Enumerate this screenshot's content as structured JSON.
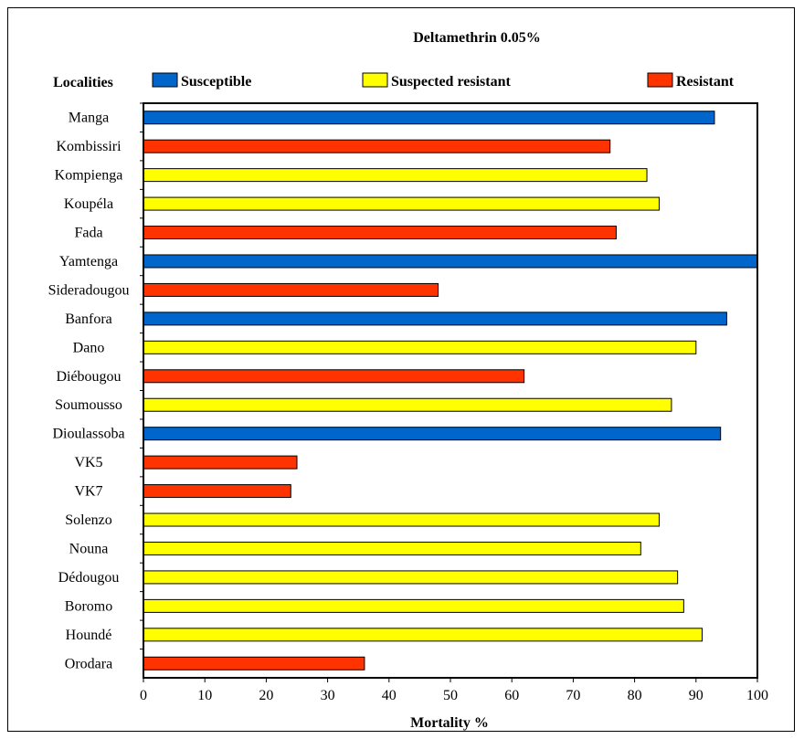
{
  "chart_data": {
    "type": "bar",
    "orientation": "horizontal",
    "title": "Deltamethrin 0.05%",
    "xlabel": "Mortality %",
    "ylabel": "Localities",
    "xlim": [
      0,
      100
    ],
    "xticks": [
      0,
      10,
      20,
      30,
      40,
      50,
      60,
      70,
      80,
      90,
      100
    ],
    "grid": false,
    "legend_position": "top",
    "legend": [
      {
        "key": "susceptible",
        "label": "Susceptible",
        "color": "#0066cc"
      },
      {
        "key": "suspected",
        "label": "Suspected resistant",
        "color": "#ffff00"
      },
      {
        "key": "resistant",
        "label": "Resistant",
        "color": "#ff3300"
      }
    ],
    "categories": [
      "Manga",
      "Kombissiri",
      "Kompienga",
      "Koupéla",
      "Fada",
      "Yamtenga",
      "Sideradougou",
      "Banfora",
      "Dano",
      "Diébougou",
      "Soumousso",
      "Dioulassoba",
      "VK5",
      "VK7",
      "Solenzo",
      "Nouna",
      "Dédougou",
      "Boromo",
      "Houndé",
      "Orodara"
    ],
    "values": [
      93,
      76,
      82,
      84,
      77,
      100,
      48,
      95,
      90,
      62,
      86,
      94,
      25,
      24,
      84,
      81,
      87,
      88,
      91,
      36
    ],
    "status": [
      "susceptible",
      "resistant",
      "suspected",
      "suspected",
      "resistant",
      "susceptible",
      "resistant",
      "susceptible",
      "suspected",
      "resistant",
      "suspected",
      "susceptible",
      "resistant",
      "resistant",
      "suspected",
      "suspected",
      "suspected",
      "suspected",
      "suspected",
      "resistant"
    ]
  }
}
